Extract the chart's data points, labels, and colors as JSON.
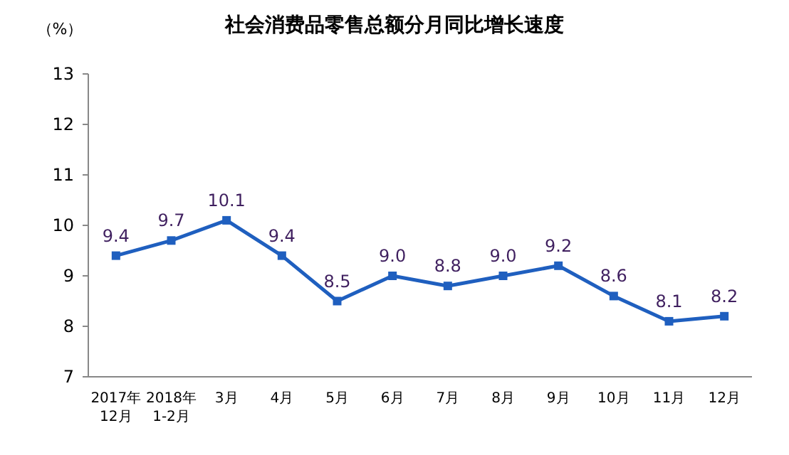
{
  "chart_data": {
    "type": "line",
    "title": "社会消费品零售总额分月同比增长速度",
    "ylabel": "（%）",
    "categories": [
      "2017年\n12月",
      "2018年\n1-2月",
      "3月",
      "4月",
      "5月",
      "6月",
      "7月",
      "8月",
      "9月",
      "10月",
      "11月",
      "12月"
    ],
    "series": [
      {
        "color": "#1f5fbf",
        "values": [
          9.4,
          9.7,
          10.1,
          9.4,
          8.5,
          9.0,
          8.8,
          9.0,
          9.2,
          8.6,
          8.1,
          8.2
        ],
        "value_labels": [
          "9.4",
          "9.7",
          "10.1",
          "9.4",
          "8.5",
          "9.0",
          "8.8",
          "9.0",
          "9.2",
          "8.6",
          "8.1",
          "8.2"
        ]
      }
    ],
    "ylim": [
      7,
      13
    ],
    "yticks": [
      7,
      8,
      9,
      10,
      11,
      12,
      13
    ],
    "marker": "square",
    "line_style": "solid",
    "grid": false
  }
}
